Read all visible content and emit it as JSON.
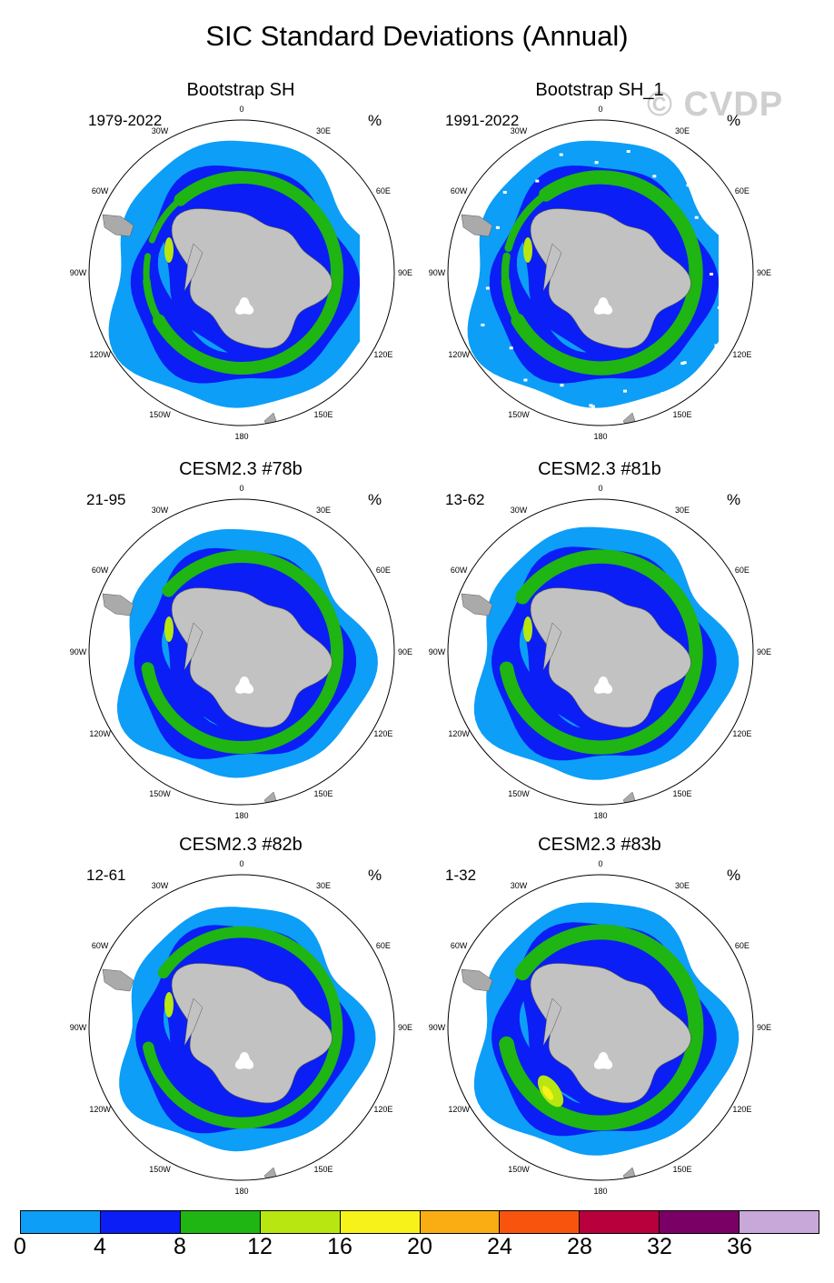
{
  "title": "SIC Standard Deviations (Annual)",
  "watermark": "© CVDP",
  "panels": [
    {
      "title": "Bootstrap SH",
      "years": "1979-2022",
      "units": "%",
      "style": "obs"
    },
    {
      "title": "Bootstrap SH_1",
      "years": "1991-2022",
      "units": "%",
      "style": "obs2"
    },
    {
      "title": "CESM2.3 #78b",
      "years": "21-95",
      "units": "%",
      "style": "model"
    },
    {
      "title": "CESM2.3 #81b",
      "years": "13-62",
      "units": "%",
      "style": "model2"
    },
    {
      "title": "CESM2.3 #82b",
      "years": "12-61",
      "units": "%",
      "style": "model3"
    },
    {
      "title": "CESM2.3 #83b",
      "years": "1-32",
      "units": "%",
      "style": "model4"
    }
  ],
  "longitude_labels": [
    "0",
    "30E",
    "60E",
    "90E",
    "120E",
    "150E",
    "180",
    "150W",
    "120W",
    "90W",
    "60W",
    "30W"
  ],
  "colorbar": {
    "colors": [
      "#0d9ef7",
      "#0a1ef5",
      "#1fb512",
      "#b8e610",
      "#f7f21a",
      "#f9ad13",
      "#f9540e",
      "#b7003c",
      "#7a0066",
      "#c8a8d9"
    ],
    "labels": [
      "0",
      "4",
      "8",
      "12",
      "16",
      "20",
      "24",
      "28",
      "32",
      "36"
    ]
  },
  "map_colors": {
    "antarctica": "#c2c2c2",
    "land": "#aaaaaa",
    "c0": "#0d9ef7",
    "c1": "#0a1ef5",
    "c2": "#1fb512",
    "c3": "#b8e610",
    "c4": "#f7f21a"
  }
}
